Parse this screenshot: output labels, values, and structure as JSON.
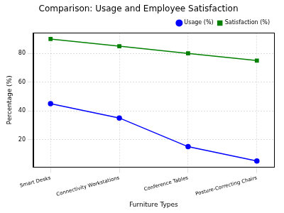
{
  "chart_data": {
    "type": "line",
    "title": "Comparison: Usage and Employee Satisfaction",
    "x_label": "Furniture Types",
    "y_label": "Percentage (%)",
    "categories": [
      "Smart Desks",
      "Connectivity Workstations",
      "Conference Tables",
      "Posture-Correcting Chairs"
    ],
    "series": [
      {
        "name": "Usage (%)",
        "color": "#0000ff",
        "values": [
          45,
          35,
          15,
          5
        ],
        "marker": "circle",
        "line_style": "solid"
      },
      {
        "name": "Satisfaction (%)",
        "color": "#008000",
        "values": [
          90,
          85,
          80,
          75
        ],
        "marker": "square",
        "line_style": "solid"
      }
    ],
    "ylim": [
      0.75,
      94.25
    ],
    "yticks": [
      20,
      40,
      60,
      80
    ],
    "grid": true,
    "legend": "upper right"
  }
}
